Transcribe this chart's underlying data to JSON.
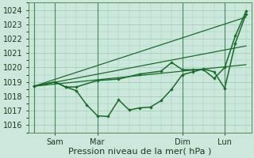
{
  "bg_color": "#cce8dc",
  "grid_color": "#99ccb3",
  "line_color": "#1a6b2a",
  "marker_color": "#1a6b2a",
  "xlabel": "Pression niveau de la mer( hPa )",
  "ylim": [
    1015.5,
    1024.5
  ],
  "yticks": [
    1016,
    1017,
    1018,
    1019,
    1020,
    1021,
    1022,
    1023,
    1024
  ],
  "xtick_labels": [
    "Sam",
    "Mar",
    "Dim",
    "Lun"
  ],
  "xtick_positions": [
    12,
    36,
    84,
    108
  ],
  "vlines": [
    0,
    12,
    36,
    84,
    108
  ],
  "vline_color": "#4a8a5a",
  "series_jagged1": {
    "x": [
      0,
      12,
      18,
      24,
      30,
      36,
      42,
      48,
      54,
      60,
      66,
      72,
      78,
      84,
      90,
      96,
      102,
      108,
      114,
      120
    ],
    "y": [
      1018.7,
      1019.0,
      1018.65,
      1018.4,
      1017.4,
      1016.65,
      1016.6,
      1017.75,
      1017.05,
      1017.2,
      1017.25,
      1017.7,
      1018.5,
      1019.5,
      1019.7,
      1019.9,
      1019.7,
      1018.55,
      1021.7,
      1023.7
    ]
  },
  "series_smooth1": {
    "x": [
      0,
      120
    ],
    "y": [
      1018.7,
      1023.5
    ]
  },
  "series_smooth2": {
    "x": [
      0,
      120
    ],
    "y": [
      1018.7,
      1021.5
    ]
  },
  "series_smooth3": {
    "x": [
      0,
      120
    ],
    "y": [
      1018.7,
      1020.2
    ]
  },
  "series_jagged2": {
    "x": [
      0,
      12,
      18,
      24,
      36,
      48,
      60,
      72,
      78,
      84,
      90,
      96,
      102,
      108,
      114,
      120
    ],
    "y": [
      1018.7,
      1019.0,
      1018.65,
      1018.65,
      1019.1,
      1019.2,
      1019.55,
      1019.75,
      1020.35,
      1019.85,
      1019.85,
      1019.85,
      1019.25,
      1020.0,
      1022.2,
      1023.9
    ]
  },
  "xlim": [
    -3,
    123
  ],
  "xlabel_fontsize": 8,
  "tick_fontsize": 7
}
